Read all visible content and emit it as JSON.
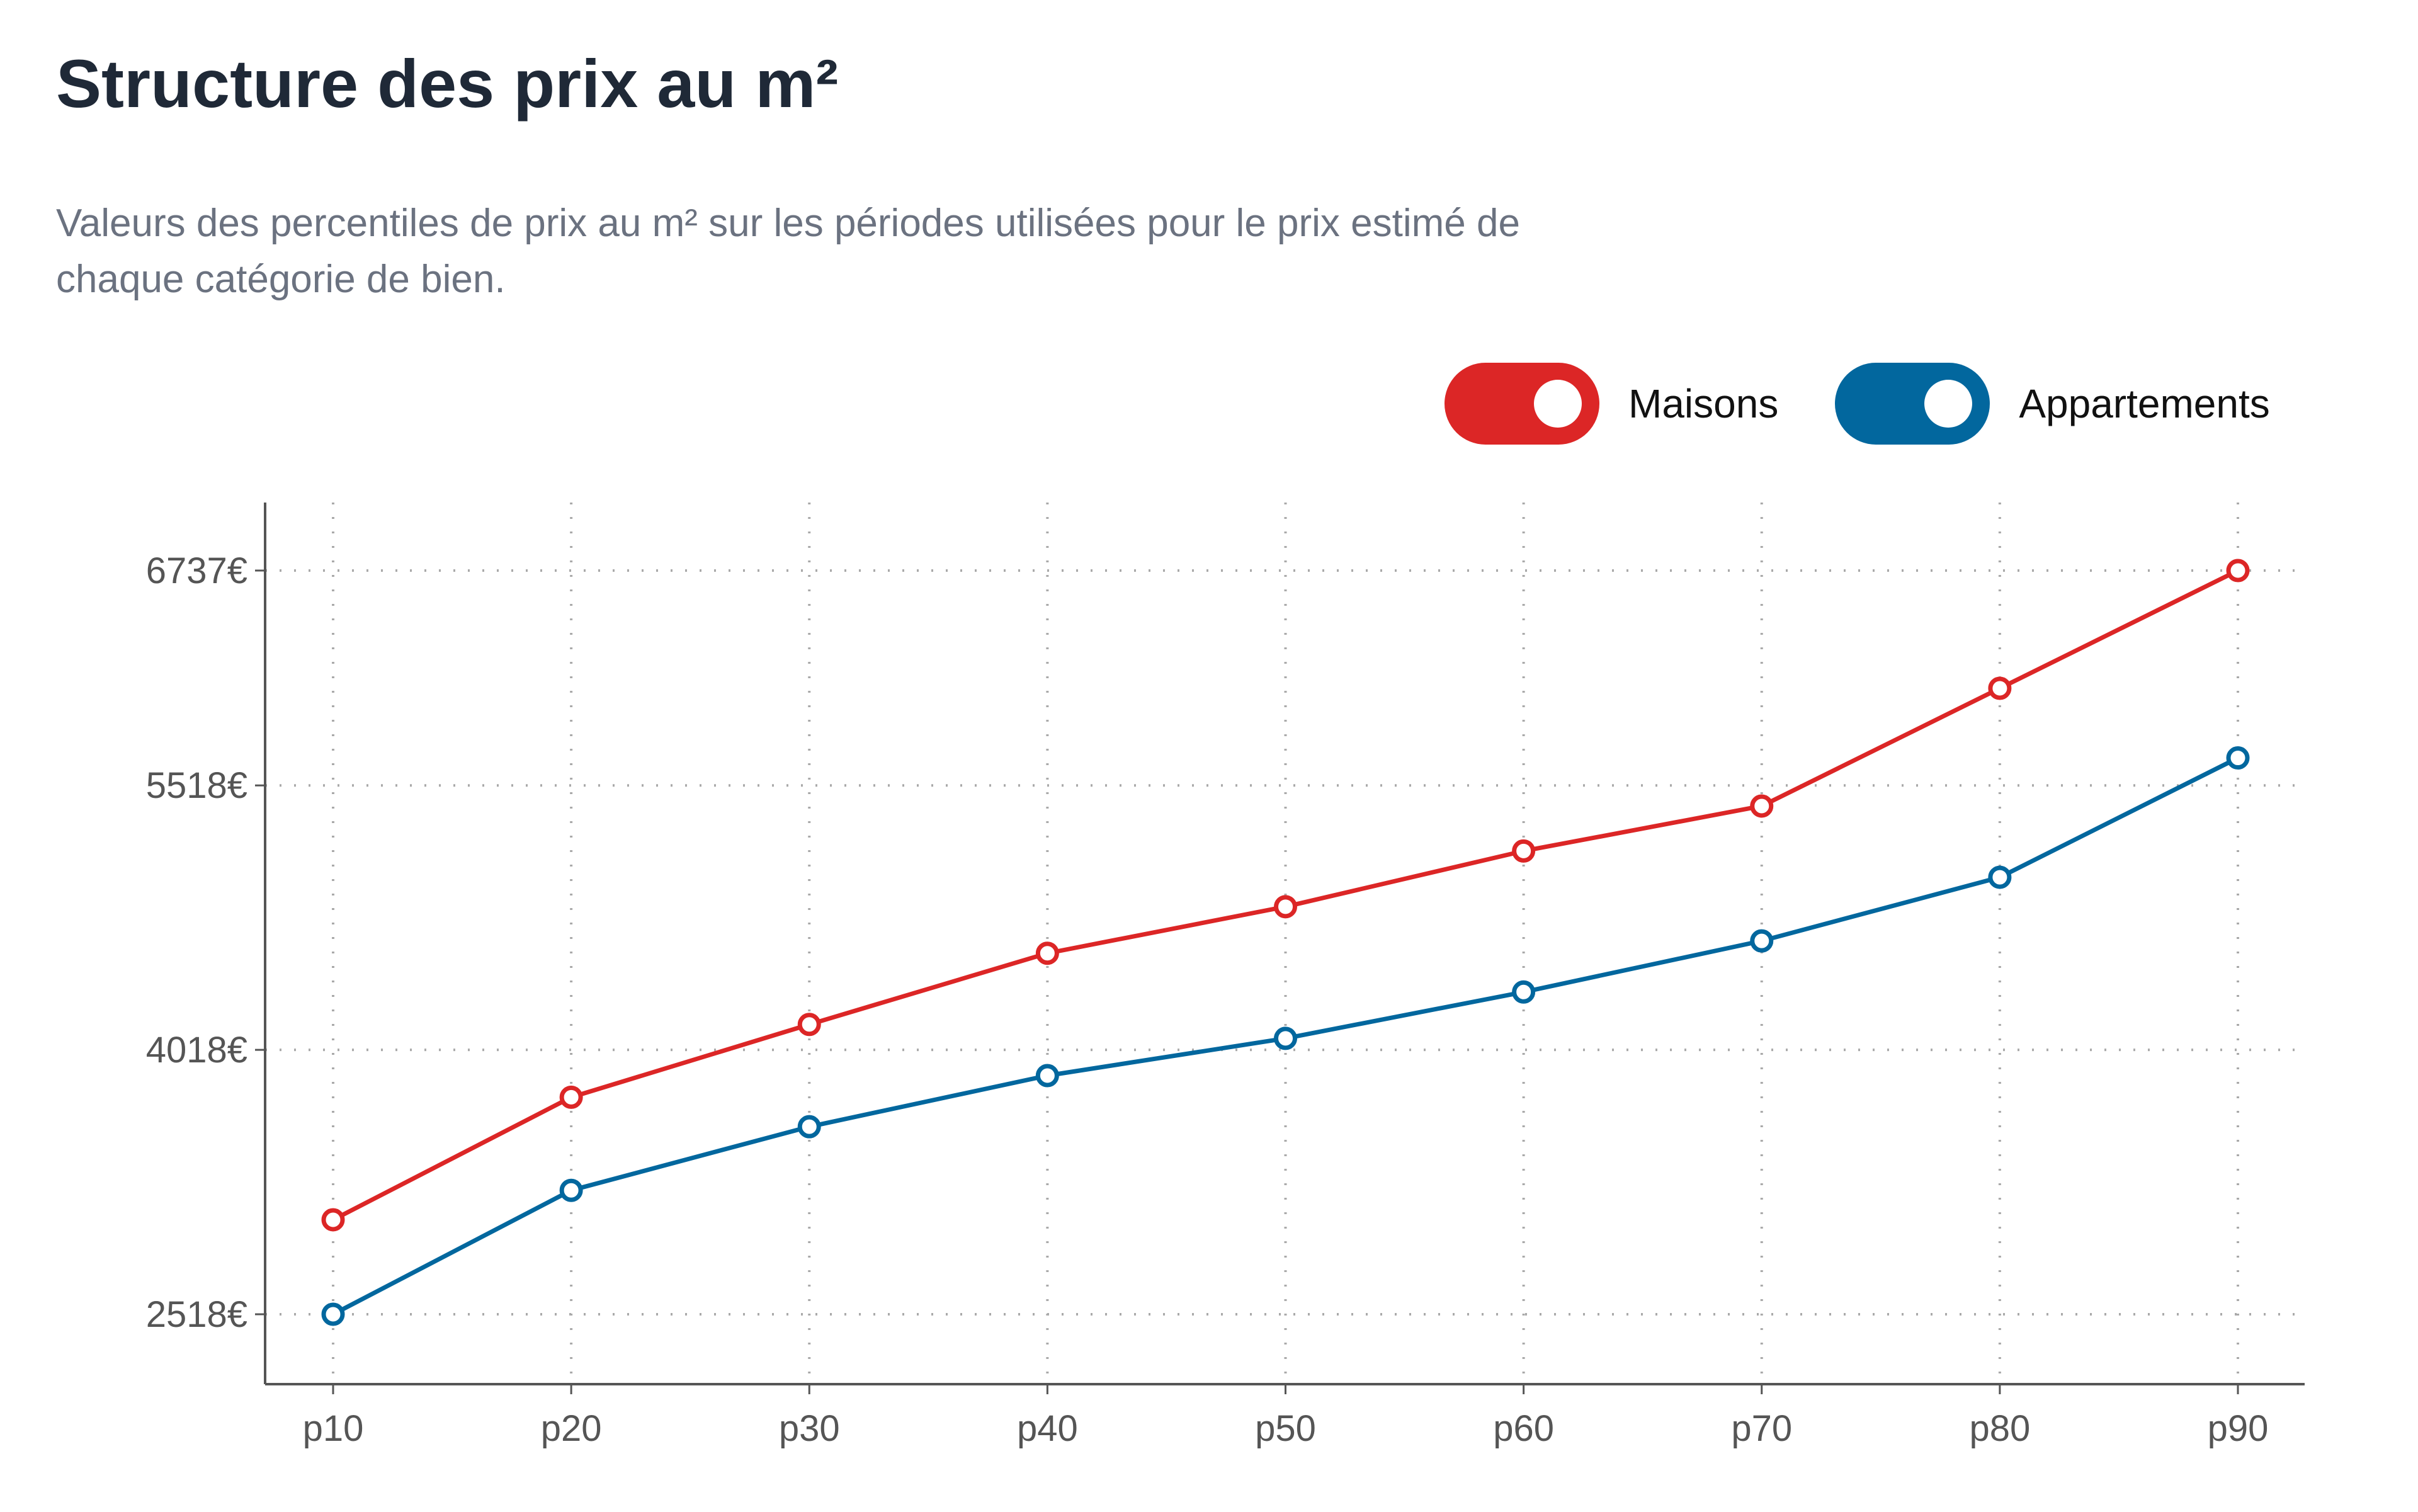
{
  "title": "Structure des prix au m²",
  "subtitle": "Valeurs des percentiles de prix au m² sur les périodes utilisées pour le prix estimé de chaque catégorie de bien.",
  "legend": [
    {
      "label": "Maisons",
      "color": "#dc2626",
      "enabled": true
    },
    {
      "label": "Appartements",
      "color": "#02679e",
      "enabled": true
    }
  ],
  "chart_data": {
    "type": "line",
    "categories": [
      "p10",
      "p20",
      "p30",
      "p40",
      "p50",
      "p60",
      "p70",
      "p80",
      "p90"
    ],
    "series": [
      {
        "name": "Maisons",
        "color": "#dc2626",
        "values": [
          3054,
          3749,
          4162,
          4566,
          4830,
          5146,
          5401,
          6069,
          6737
        ]
      },
      {
        "name": "Appartements",
        "color": "#02679e",
        "values": [
          2518,
          3221,
          3582,
          3872,
          4083,
          4346,
          4636,
          4997,
          5674
        ]
      }
    ],
    "yticks": [
      2518,
      4018,
      5518,
      6737
    ],
    "ytick_labels": [
      "2518€",
      "4018€",
      "5518€",
      "6737€"
    ],
    "grid": true,
    "grid_style": "dotted",
    "legend_position": "top-right"
  }
}
